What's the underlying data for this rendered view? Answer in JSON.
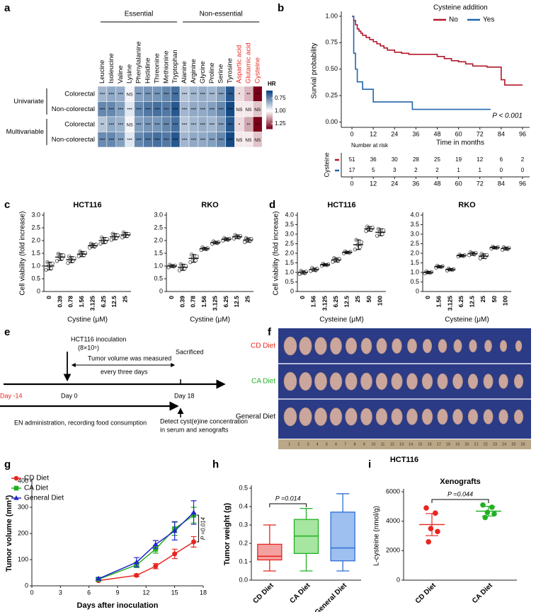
{
  "chart_data": [
    {
      "panel": "a",
      "type": "heatmap",
      "category_groups": [
        {
          "label": "Essential",
          "categories": [
            "Leucine",
            "Isoleucine",
            "Valine",
            "Lysine",
            "Phenylalanine",
            "Histidine",
            "Threonine",
            "Methionine",
            "Tryptophan"
          ],
          "label_colors": [
            "#000000",
            "#000000",
            "#000000",
            "#000000",
            "#000000",
            "#000000",
            "#000000",
            "#000000",
            "#000000"
          ]
        },
        {
          "label": "Non-essential",
          "categories": [
            "Alanine",
            "Arginine",
            "Glycine",
            "Proline",
            "Serine",
            "Tyrosine",
            "Aspartic acid",
            "Glutamic acid",
            "Cysteine"
          ],
          "label_colors": [
            "#000000",
            "#000000",
            "#000000",
            "#000000",
            "#000000",
            "#000000",
            "#e8251f",
            "#e8251f",
            "#e8251f"
          ]
        }
      ],
      "row_groups": [
        {
          "label": "Univariate",
          "rows": [
            {
              "name": "Colorectal",
              "values": [
                0.85,
                0.82,
                0.83,
                0.98,
                0.8,
                0.78,
                0.78,
                0.75,
                0.7,
                0.88,
                0.85,
                0.83,
                0.85,
                0.8,
                0.65,
                1.05,
                1.1,
                1.35
              ],
              "significance": [
                "***",
                "***",
                "***",
                "NS",
                "***",
                "***",
                "***",
                "***",
                "***",
                "***",
                "***",
                "***",
                "***",
                "***",
                "***",
                "*",
                "**",
                "***"
              ]
            },
            {
              "name": "Non-colorectal",
              "values": [
                0.75,
                0.75,
                0.8,
                0.95,
                0.75,
                0.72,
                0.7,
                0.72,
                0.65,
                0.85,
                0.82,
                0.82,
                0.8,
                0.75,
                0.62,
                1.03,
                1.03,
                1.08
              ],
              "significance": [
                "***",
                "***",
                "***",
                "***",
                "***",
                "***",
                "***",
                "***",
                "***",
                "***",
                "***",
                "***",
                "***",
                "***",
                "***",
                "NS",
                "NS",
                "NS"
              ]
            }
          ]
        },
        {
          "label": "Multivariable",
          "rows": [
            {
              "name": "Colorectal",
              "values": [
                0.88,
                0.82,
                0.84,
                0.98,
                0.8,
                0.78,
                0.78,
                0.75,
                0.7,
                0.88,
                0.85,
                0.83,
                0.85,
                0.8,
                0.65,
                1.05,
                1.12,
                1.35
              ],
              "significance": [
                "**",
                "***",
                "***",
                "NS",
                "***",
                "***",
                "***",
                "***",
                "***",
                "***",
                "***",
                "***",
                "***",
                "***",
                "***",
                "*",
                "**",
                "***"
              ]
            },
            {
              "name": "Non-colorectal",
              "values": [
                0.76,
                0.75,
                0.8,
                0.95,
                0.75,
                0.72,
                0.7,
                0.72,
                0.65,
                0.85,
                0.82,
                0.82,
                0.8,
                0.75,
                0.62,
                1.03,
                1.03,
                1.08
              ],
              "significance": [
                "***",
                "***",
                "***",
                "***",
                "***",
                "***",
                "***",
                "***",
                "***",
                "***",
                "***",
                "***",
                "***",
                "***",
                "***",
                "NS",
                "NS",
                "NS"
              ]
            }
          ]
        }
      ],
      "colorbar_title": "HR",
      "colorbar_ticks": [
        0.75,
        {
          "value": 1,
          "label": "1.00"
        },
        1.25
      ],
      "color_stops": [
        {
          "value": 0.6,
          "color": "#08407f"
        },
        {
          "value": 1,
          "color": "#ffffff"
        },
        {
          "value": 1.35,
          "color": "#7a0019"
        }
      ]
    },
    {
      "panel": "b",
      "type": "km",
      "legend_title": "Cysteine addition",
      "xlabel": "Time in months",
      "ylabel": "Survial probability",
      "annotation": "P < 0.001",
      "xlim": [
        -6,
        100
      ],
      "ylim": [
        -0.05,
        1.02
      ],
      "xticks": [
        0,
        12,
        24,
        36,
        48,
        60,
        72,
        84,
        96
      ],
      "yticks": [
        {
          "value": 0,
          "label": "0.00"
        },
        0.25,
        {
          "value": 0.5,
          "label": "0.50"
        },
        0.75,
        {
          "value": 1,
          "label": "1.00"
        }
      ],
      "series": [
        {
          "name": "No",
          "color": "#b2182b",
          "x": [
            0,
            1,
            2,
            3,
            4,
            5,
            6,
            8,
            10,
            12,
            14,
            16,
            18,
            20,
            24,
            28,
            32,
            40,
            48,
            52,
            56,
            60,
            64,
            68,
            76,
            84,
            86,
            96
          ],
          "y": [
            1,
            0.96,
            0.92,
            0.88,
            0.86,
            0.84,
            0.82,
            0.8,
            0.78,
            0.76,
            0.74,
            0.72,
            0.7,
            0.68,
            0.66,
            0.65,
            0.64,
            0.64,
            0.62,
            0.6,
            0.58,
            0.57,
            0.55,
            0.53,
            0.52,
            0.4,
            0.35,
            0.35
          ]
        },
        {
          "name": "Yes",
          "color": "#2166ac",
          "x": [
            0,
            1,
            2,
            3,
            6,
            12,
            34,
            78
          ],
          "y": [
            1,
            0.65,
            0.5,
            0.38,
            0.31,
            0.19,
            0.12,
            0.12
          ]
        }
      ],
      "risk_table": {
        "title": "Number at risk",
        "label": "Cysteine",
        "counts": [
          [
            51,
            36,
            30,
            28,
            25,
            19,
            12,
            6,
            2
          ],
          [
            17,
            5,
            3,
            2,
            2,
            1,
            1,
            0,
            0
          ]
        ]
      }
    },
    {
      "panel": "c",
      "type": "dots",
      "title": "HCT116",
      "xlabel": "Cystine (μM)",
      "ylabel": "Cell viability (fold increase)",
      "color": "#444444",
      "categories": [
        "0",
        "0.39",
        "0.78",
        "1.56",
        "3.125",
        "6.25",
        "12.5",
        "25"
      ],
      "ylim": [
        0,
        3
      ],
      "yticks": [
        0,
        0.5,
        {
          "value": 1,
          "label": "1.0"
        },
        1.5,
        {
          "value": 2,
          "label": "2.0"
        },
        2.5,
        {
          "value": 3,
          "label": "3.0"
        }
      ],
      "means": [
        1.0,
        1.35,
        1.25,
        1.47,
        1.8,
        2.0,
        2.15,
        2.22
      ],
      "errors": [
        0.15,
        0.13,
        0.12,
        0.1,
        0.08,
        0.12,
        0.12,
        0.1
      ],
      "points": [
        [
          0.85,
          0.9,
          1.0,
          1.1,
          1.15
        ],
        [
          1.2,
          1.3,
          1.35,
          1.42,
          1.48
        ],
        [
          1.12,
          1.2,
          1.25,
          1.3,
          1.38
        ],
        [
          1.38,
          1.42,
          1.47,
          1.52,
          1.57
        ],
        [
          1.72,
          1.76,
          1.8,
          1.84,
          1.88
        ],
        [
          1.88,
          1.95,
          2.0,
          2.06,
          2.12
        ],
        [
          2.03,
          2.1,
          2.15,
          2.2,
          2.27
        ],
        [
          2.12,
          2.18,
          2.22,
          2.26,
          2.32
        ]
      ]
    },
    {
      "type": "dots",
      "title": "RKO",
      "xlabel": "Cystine (μM)",
      "color": "#444444",
      "categories": [
        "0",
        "0.39",
        "0.78",
        "1.56",
        "3.125",
        "6.25",
        "12.5",
        "25"
      ],
      "ylim": [
        0,
        3
      ],
      "yticks": [
        0,
        0.5,
        {
          "value": 1,
          "label": "1.0"
        },
        1.5,
        {
          "value": 2,
          "label": "2.0"
        },
        2.5,
        {
          "value": 3,
          "label": "3.0"
        }
      ],
      "means": [
        1.0,
        0.95,
        1.3,
        1.68,
        1.92,
        2.05,
        2.15,
        2.02
      ],
      "errors": [
        0.05,
        0.12,
        0.15,
        0.05,
        0.05,
        0.05,
        0.07,
        0.08
      ],
      "points": [
        [
          0.95,
          0.98,
          1.0,
          1.02,
          1.05
        ],
        [
          0.83,
          0.9,
          0.95,
          1.0,
          1.07
        ],
        [
          1.15,
          1.22,
          1.3,
          1.38,
          1.45
        ],
        [
          1.63,
          1.66,
          1.68,
          1.7,
          1.73
        ],
        [
          1.87,
          1.9,
          1.92,
          1.94,
          1.97
        ],
        [
          2.0,
          2.03,
          2.05,
          2.07,
          2.1
        ],
        [
          2.08,
          2.12,
          2.15,
          2.18,
          2.22
        ],
        [
          1.94,
          1.98,
          2.02,
          2.06,
          2.1
        ]
      ]
    },
    {
      "panel": "d",
      "type": "dots",
      "title": "HCT116",
      "xlabel": "Cysteine (μM)",
      "ylabel": "Cell viability (fold increase)",
      "color": "#444444",
      "categories": [
        "0",
        "1.56",
        "3.125",
        "6.25",
        "12.5",
        "25",
        "50",
        "100"
      ],
      "ylim": [
        0,
        4
      ],
      "yticks": [
        0,
        0.5,
        {
          "value": 1,
          "label": "1.0"
        },
        1.5,
        {
          "value": 2,
          "label": "2.0"
        },
        2.5,
        {
          "value": 3,
          "label": "3.0"
        },
        3.5,
        {
          "value": 4,
          "label": "4.0"
        }
      ],
      "means": [
        1.0,
        1.15,
        1.4,
        1.65,
        2.05,
        2.45,
        3.28,
        3.1
      ],
      "errors": [
        0.08,
        0.08,
        0.05,
        0.1,
        0.05,
        0.25,
        0.12,
        0.18
      ],
      "points": [
        [
          0.92,
          0.96,
          1.0,
          1.04,
          1.08
        ],
        [
          1.07,
          1.11,
          1.15,
          1.19,
          1.23
        ],
        [
          1.35,
          1.38,
          1.4,
          1.42,
          1.45
        ],
        [
          1.55,
          1.6,
          1.65,
          1.7,
          1.75
        ],
        [
          2.0,
          2.03,
          2.05,
          2.07,
          2.1
        ],
        [
          2.2,
          2.33,
          2.45,
          2.58,
          2.7
        ],
        [
          3.16,
          3.22,
          3.28,
          3.34,
          3.4
        ],
        [
          2.92,
          3.0,
          3.1,
          3.2,
          3.28
        ]
      ]
    },
    {
      "type": "dots",
      "title": "RKO",
      "xlabel": "Cysteine (μM)",
      "color": "#444444",
      "categories": [
        "0",
        "1.56",
        "3.125",
        "6.25",
        "12.5",
        "25",
        "50",
        "100"
      ],
      "ylim": [
        0,
        4
      ],
      "yticks": [
        0,
        0.5,
        {
          "value": 1,
          "label": "1.0"
        },
        1.5,
        {
          "value": 2,
          "label": "2.0"
        },
        2.5,
        {
          "value": 3,
          "label": "3.0"
        },
        3.5,
        {
          "value": 4,
          "label": "4.0"
        }
      ],
      "means": [
        1.0,
        1.3,
        1.15,
        1.88,
        1.98,
        1.85,
        2.3,
        2.25
      ],
      "errors": [
        0.05,
        0.05,
        0.05,
        0.05,
        0.08,
        0.12,
        0.05,
        0.07
      ],
      "points": [
        [
          0.95,
          0.98,
          1.0,
          1.02,
          1.05
        ],
        [
          1.25,
          1.28,
          1.3,
          1.32,
          1.35
        ],
        [
          1.1,
          1.13,
          1.15,
          1.17,
          1.2
        ],
        [
          1.83,
          1.86,
          1.88,
          1.9,
          1.93
        ],
        [
          1.9,
          1.94,
          1.98,
          2.02,
          2.06
        ],
        [
          1.73,
          1.79,
          1.85,
          1.91,
          1.97
        ],
        [
          2.25,
          2.28,
          2.3,
          2.32,
          2.35
        ],
        [
          2.18,
          2.22,
          2.25,
          2.28,
          2.32
        ]
      ]
    },
    {
      "panel": "g",
      "type": "line",
      "xlabel": "Days after inoculation",
      "ylabel": "Tumor volume (mm³)",
      "annotation": "P =0.014",
      "x": [
        7,
        11,
        13,
        15,
        17
      ],
      "xlim": [
        0,
        18
      ],
      "xticks": [
        0,
        3,
        6,
        9,
        12,
        15,
        18
      ],
      "ylim": [
        0,
        400
      ],
      "yticks": [
        0,
        100,
        200,
        300,
        400
      ],
      "series": [
        {
          "name": "CD Diet",
          "color": "#e8251f",
          "marker": "circle",
          "values": [
            20,
            40,
            75,
            122,
            168
          ],
          "errors": [
            3,
            5,
            10,
            18,
            20
          ]
        },
        {
          "name": "CA Diet",
          "color": "#22b022",
          "marker": "square",
          "values": [
            25,
            80,
            140,
            218,
            270
          ],
          "errors": [
            4,
            10,
            15,
            25,
            30
          ]
        },
        {
          "name": "General Diet",
          "color": "#2525cc",
          "marker": "triangle",
          "values": [
            27,
            90,
            158,
            210,
            280
          ],
          "errors": [
            4,
            18,
            15,
            35,
            45
          ]
        }
      ]
    },
    {
      "panel": "h",
      "type": "box",
      "ylabel": "Tumor weight (g)",
      "annotation": "P =0.014",
      "categories": [
        "CD Diet",
        "CA Diet",
        "General Diet"
      ],
      "ylim": [
        0,
        0.5
      ],
      "yticks": [
        {
          "value": 0,
          "label": "0.0"
        },
        0.1,
        0.2,
        0.3,
        0.4,
        0.5
      ],
      "colors": [
        "#e8251f",
        "#22b022",
        "#2e6fd6"
      ],
      "fill_colors": [
        "#f4a0a0",
        "#a6e6a0",
        "#9ec0f0"
      ],
      "boxes": [
        {
          "min": 0.05,
          "q1": 0.11,
          "median": 0.13,
          "q3": 0.195,
          "max": 0.3
        },
        {
          "min": 0.05,
          "q1": 0.145,
          "median": 0.24,
          "q3": 0.33,
          "max": 0.39
        },
        {
          "min": 0.05,
          "q1": 0.105,
          "median": 0.175,
          "q3": 0.37,
          "max": 0.47
        }
      ]
    },
    {
      "panel": "i",
      "type": "dots",
      "title": "Xenografts",
      "ylabel": "L-cysteine (nmol/g)",
      "annotation": "P =0.044",
      "categories": [
        "CD Diet",
        "CA Diet"
      ],
      "colors": [
        "#e8251f",
        "#22b022"
      ],
      "ylim": [
        0,
        6000
      ],
      "yticks": [
        0,
        2000,
        4000,
        6000
      ],
      "means": [
        3770,
        4680
      ],
      "errors": [
        750,
        330
      ],
      "points": [
        [
          4900,
          4550,
          3500,
          3300,
          2600
        ],
        [
          5100,
          4950,
          4600,
          4500,
          4250
        ]
      ]
    }
  ],
  "timeline": {
    "panel": "e",
    "inoculation": "HCT116 inoculation",
    "dose": "(8×10⁵)",
    "measure_1": "Tumor volume was measured",
    "measure_2": "every three days",
    "sacrificed": "Sacrificed",
    "day_start": "Day -14",
    "day_0": "Day 0",
    "day_end": "Day 18",
    "feeding": "EN  administration, recording food consumption",
    "detect_1": "Detect cyst(e)ine concentration",
    "detect_2": "in serum and xenografts"
  },
  "photo": {
    "panel": "f",
    "groups": [
      {
        "label": "CD Diet",
        "color": "#e8251f"
      },
      {
        "label": "CA Diet",
        "color": "#22b022"
      },
      {
        "label": "General Diet",
        "color": "#000000"
      }
    ],
    "ruler": [
      1,
      2,
      3,
      4,
      5,
      6,
      7,
      8,
      9,
      10,
      11,
      12,
      13,
      14,
      15,
      16,
      17,
      18,
      19,
      20,
      21,
      22,
      23,
      24,
      25,
      26
    ],
    "caption": "HCT116"
  }
}
